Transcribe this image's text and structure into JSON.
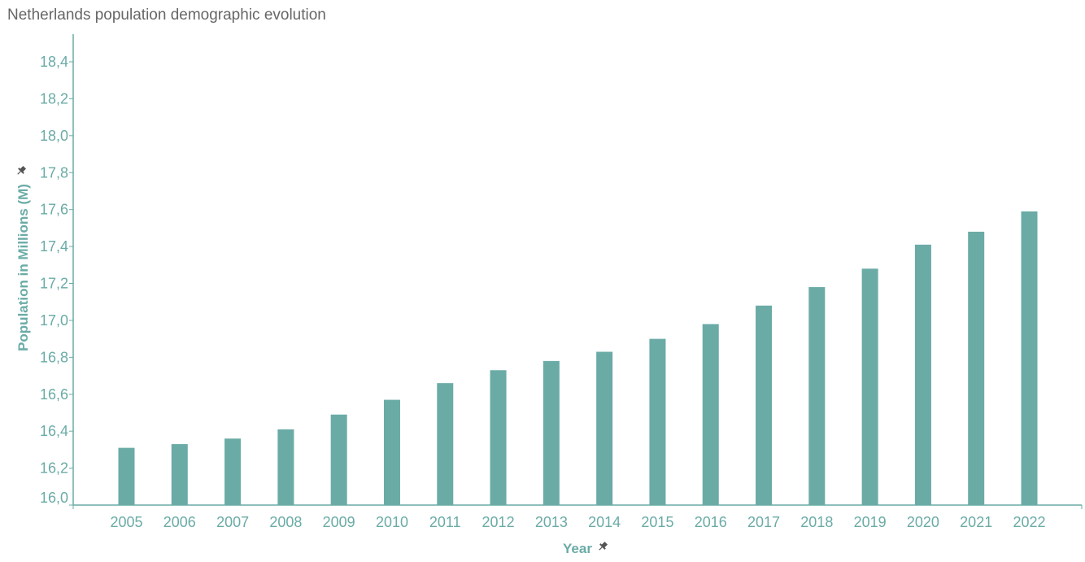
{
  "title": "Netherlands population demographic evolution",
  "colors": {
    "bar": "#6aaba6",
    "axis": "#6aaba6",
    "label": "#6aaba6",
    "title": "#666666",
    "pin": "#555555"
  },
  "icons": {
    "y_axis_pin": "pin-icon",
    "x_axis_pin": "pin-icon"
  },
  "chart_data": {
    "type": "bar",
    "title": "Netherlands population demographic evolution",
    "xlabel": "Year",
    "ylabel": "Population in Millions (M)",
    "ylim": [
      16.0,
      18.5
    ],
    "yticks": [
      16.0,
      16.2,
      16.4,
      16.6,
      16.8,
      17.0,
      17.2,
      17.4,
      17.6,
      17.8,
      18.0,
      18.2,
      18.4
    ],
    "ytick_labels": [
      "16,0",
      "16,2",
      "16,4",
      "16,6",
      "16,8",
      "17,0",
      "17,2",
      "17,4",
      "17,6",
      "17,8",
      "18,0",
      "18,2",
      "18,4"
    ],
    "grid": false,
    "legend": "none",
    "categories": [
      "2005",
      "2006",
      "2007",
      "2008",
      "2009",
      "2010",
      "2011",
      "2012",
      "2013",
      "2014",
      "2015",
      "2016",
      "2017",
      "2018",
      "2019",
      "2020",
      "2021",
      "2022"
    ],
    "values": [
      16.31,
      16.33,
      16.36,
      16.41,
      16.49,
      16.57,
      16.66,
      16.73,
      16.78,
      16.83,
      16.9,
      16.98,
      17.08,
      17.18,
      17.28,
      17.41,
      17.48,
      17.59
    ]
  }
}
